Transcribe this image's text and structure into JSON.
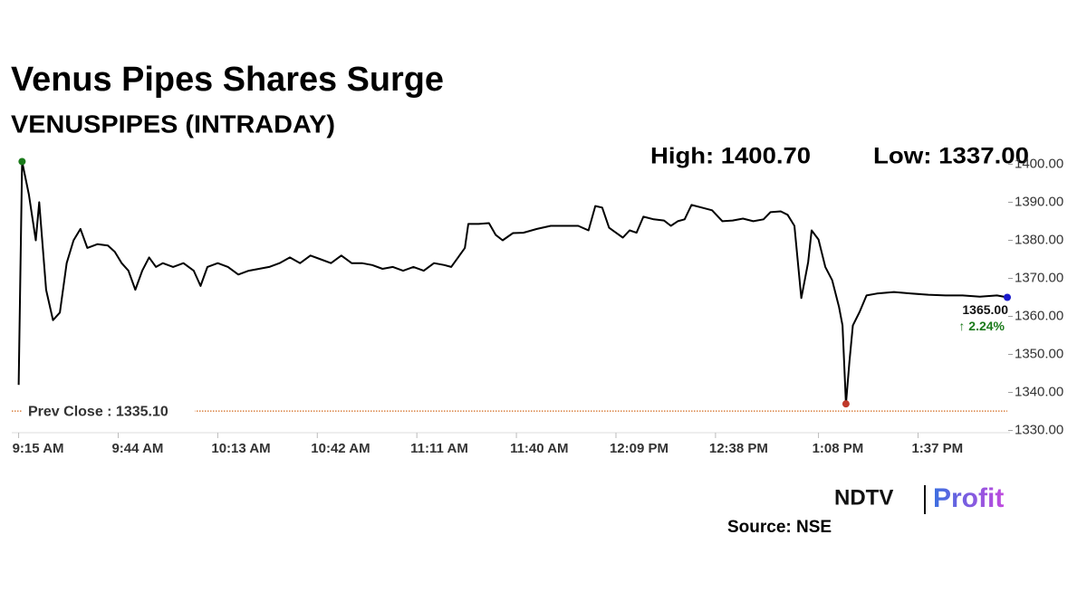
{
  "chart_data": {
    "type": "line",
    "title": "Venus Pipes Shares Surge",
    "subtitle": "VENUSPIPES (INTRADAY)",
    "high": {
      "value": 1400.7,
      "label": "High: 1400.70",
      "color": "#1a7a1a"
    },
    "low": {
      "value": 1337,
      "label": "Low: 1337.00",
      "color": "#c0392b"
    },
    "last": {
      "value": 1365,
      "label": "1365.00",
      "color": "#1a1acc"
    },
    "change": {
      "value": 2.24,
      "label": "↑ 2.24%",
      "color": "#1a7a1a"
    },
    "prev_close": {
      "value": 1335.1,
      "label": "Prev Close : 1335.10",
      "color": "#d2691e"
    },
    "x": [
      "9:15 AM",
      "9:16 AM",
      "9:18 AM",
      "9:20 AM",
      "9:21 AM",
      "9:23 AM",
      "9:25 AM",
      "9:27 AM",
      "9:29 AM",
      "9:31 AM",
      "9:33 AM",
      "9:35 AM",
      "9:38 AM",
      "9:41 AM",
      "9:43 AM",
      "9:45 AM",
      "9:47 AM",
      "9:49 AM",
      "9:51 AM",
      "9:53 AM",
      "9:55 AM",
      "9:57 AM",
      "10:00 AM",
      "10:03 AM",
      "10:06 AM",
      "10:08 AM",
      "10:10 AM",
      "10:13 AM",
      "10:16 AM",
      "10:19 AM",
      "10:22 AM",
      "10:25 AM",
      "10:28 AM",
      "10:31 AM",
      "10:34 AM",
      "10:37 AM",
      "10:40 AM",
      "10:43 AM",
      "10:46 AM",
      "10:49 AM",
      "10:52 AM",
      "10:55 AM",
      "10:58 AM",
      "11:01 AM",
      "11:04 AM",
      "11:07 AM",
      "11:10 AM",
      "11:13 AM",
      "11:16 AM",
      "11:19 AM",
      "11:21 AM",
      "11:23 AM",
      "11:25 AM",
      "11:26 AM",
      "11:29 AM",
      "11:32 AM",
      "11:34 AM",
      "11:36 AM",
      "11:39 AM",
      "11:42 AM",
      "11:46 AM",
      "11:50 AM",
      "11:54 AM",
      "11:58 AM",
      "12:01 PM",
      "12:03 PM",
      "12:05 PM",
      "12:07 PM",
      "12:09 PM",
      "12:11 PM",
      "12:13 PM",
      "12:15 PM",
      "12:17 PM",
      "12:20 PM",
      "12:23 PM",
      "12:25 PM",
      "12:27 PM",
      "12:29 PM",
      "12:31 PM",
      "12:34 PM",
      "12:37 PM",
      "12:40 PM",
      "12:43 PM",
      "12:46 PM",
      "12:49 PM",
      "12:52 PM",
      "12:54 PM",
      "12:57 PM",
      "12:59 PM",
      "1:01 PM",
      "1:03 PM",
      "1:04 PM",
      "1:05 PM",
      "1:06 PM",
      "1:08 PM",
      "1:10 PM",
      "1:12 PM",
      "1:14 PM",
      "1:15 PM",
      "1:16 PM",
      "1:17 PM",
      "1:18 PM",
      "1:20 PM",
      "1:22 PM",
      "1:25 PM",
      "1:30 PM",
      "1:35 PM",
      "1:40 PM",
      "1:45 PM",
      "1:50 PM",
      "1:55 PM",
      "2:00 PM",
      "2:03 PM"
    ],
    "series": [
      {
        "name": "VENUSPIPES",
        "color": "#000000",
        "values": [
          1342,
          1400.7,
          1392,
          1380,
          1390,
          1367,
          1359,
          1361,
          1374,
          1380,
          1383,
          1378,
          1379,
          1378.6,
          1377,
          1374,
          1372,
          1367,
          1372,
          1375.5,
          1373,
          1374,
          1373,
          1374,
          1372,
          1368,
          1373,
          1374,
          1373,
          1371,
          1372,
          1372.5,
          1373,
          1374,
          1375.5,
          1374,
          1376,
          1375,
          1374,
          1376,
          1374,
          1374,
          1373.5,
          1372.5,
          1373,
          1372,
          1373,
          1372,
          1374,
          1373.5,
          1373,
          1375.5,
          1378,
          1384.3,
          1384.3,
          1384.5,
          1381.4,
          1380,
          1381.9,
          1382,
          1383,
          1383.8,
          1383.8,
          1383.8,
          1382.6,
          1389,
          1388.6,
          1383.3,
          1382,
          1380.7,
          1382.6,
          1382,
          1386.2,
          1385.5,
          1385.2,
          1383.8,
          1385,
          1385.5,
          1389.3,
          1388.6,
          1387.9,
          1385,
          1385.2,
          1385.7,
          1385,
          1385.5,
          1387.4,
          1387.6,
          1386.7,
          1383.8,
          1364.8,
          1369.5,
          1374.3,
          1382.6,
          1380.2,
          1373,
          1369.5,
          1362.4,
          1357.6,
          1337,
          1348,
          1357.6,
          1361.2,
          1365.5,
          1366,
          1366.4,
          1366,
          1365.7,
          1365.5,
          1365.5,
          1365.2,
          1365.5,
          1365
        ]
      }
    ],
    "xlim": [
      "9:13 AM",
      "2:03 PM"
    ],
    "xticks": [
      "9:15 AM",
      "9:44 AM",
      "10:13 AM",
      "10:42 AM",
      "11:11 AM",
      "11:40 AM",
      "12:09 PM",
      "12:38 PM",
      "1:08 PM",
      "1:37 PM"
    ],
    "ylim": [
      1328,
      1402
    ],
    "yticks": [
      {
        "value": 1330,
        "label": "1330.00"
      },
      {
        "value": 1340,
        "label": "1340.00"
      },
      {
        "value": 1350,
        "label": "1350.00"
      },
      {
        "value": 1360,
        "label": "1360.00"
      },
      {
        "value": 1370,
        "label": "1370.00"
      },
      {
        "value": 1380,
        "label": "1380.00"
      },
      {
        "value": 1390,
        "label": "1390.00"
      },
      {
        "value": 1400,
        "label": "1400.00"
      }
    ],
    "logo": {
      "brand": "NDTV",
      "product": "Profit"
    },
    "source": "Source: NSE"
  }
}
